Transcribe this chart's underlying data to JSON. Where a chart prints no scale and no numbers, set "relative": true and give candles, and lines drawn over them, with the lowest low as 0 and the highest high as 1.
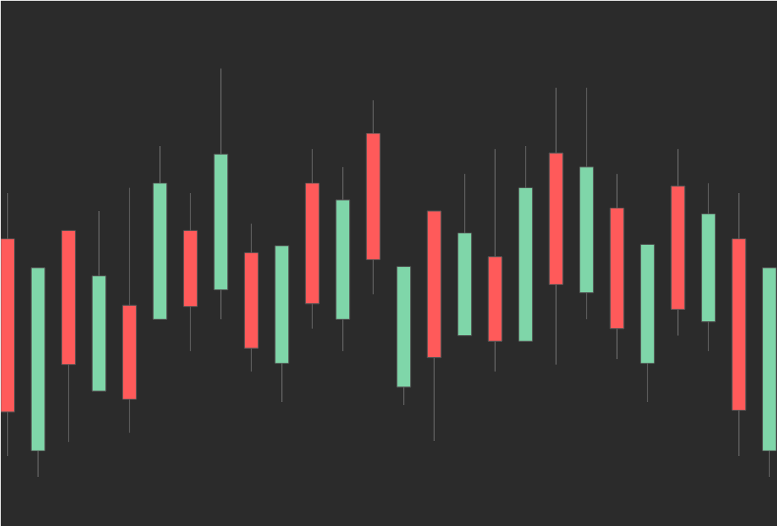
{
  "chart_data": {
    "type": "candlestick",
    "relative": true,
    "categories": [
      null,
      null,
      null,
      null,
      null,
      null,
      null,
      null,
      null,
      null,
      null,
      null,
      null,
      null,
      null,
      null,
      null,
      null,
      null,
      null,
      null,
      null,
      null,
      null,
      null,
      null
    ],
    "ohlc": [
      [
        0.583,
        0.695,
        0.051,
        0.159
      ],
      [
        0.064,
        0.512,
        0,
        0.512
      ],
      [
        0.603,
        0.603,
        0.085,
        0.275
      ],
      [
        0.21,
        0.651,
        0.21,
        0.492
      ],
      [
        0.42,
        0.708,
        0.108,
        0.19
      ],
      [
        0.386,
        0.81,
        0.386,
        0.719
      ],
      [
        0.603,
        0.695,
        0.308,
        0.417
      ],
      [
        0.458,
        1,
        0.386,
        0.79
      ],
      [
        0.549,
        0.62,
        0.258,
        0.315
      ],
      [
        0.278,
        0.566,
        0.183,
        0.566
      ],
      [
        0.719,
        0.803,
        0.363,
        0.424
      ],
      [
        0.386,
        0.759,
        0.308,
        0.678
      ],
      [
        0.841,
        0.922,
        0.447,
        0.532
      ],
      [
        0.22,
        0.515,
        0.176,
        0.515
      ],
      [
        0.651,
        0.651,
        0.088,
        0.292
      ],
      [
        0.346,
        0.742,
        0.346,
        0.597
      ],
      [
        0.539,
        0.803,
        0.258,
        0.332
      ],
      [
        0.332,
        0.81,
        0.332,
        0.708
      ],
      [
        0.793,
        0.953,
        0.275,
        0.471
      ],
      [
        0.451,
        0.953,
        0.386,
        0.759
      ],
      [
        0.658,
        0.742,
        0.288,
        0.363
      ],
      [
        0.278,
        0.569,
        0.183,
        0.569
      ],
      [
        0.712,
        0.803,
        0.346,
        0.41
      ],
      [
        0.38,
        0.719,
        0.308,
        0.644
      ],
      [
        0.583,
        0.695,
        0.051,
        0.163
      ],
      [
        0.064,
        0.512,
        0,
        0.512
      ]
    ],
    "colors": [
      "#ff5a5a",
      "#7fd6a9",
      "#ff5a5a",
      "#7fd6a9",
      "#ff5a5a",
      "#7fd6a9",
      "#ff5a5a",
      "#7fd6a9",
      "#ff5a5a",
      "#7fd6a9",
      "#ff5a5a",
      "#7fd6a9",
      "#ff5a5a",
      "#7fd6a9",
      "#ff5a5a",
      "#7fd6a9",
      "#ff5a5a",
      "#7fd6a9",
      "#ff5a5a",
      "#7fd6a9",
      "#ff5a5a",
      "#7fd6a9",
      "#ff5a5a",
      "#7fd6a9",
      "#ff5a5a",
      "#7fd6a9"
    ]
  }
}
